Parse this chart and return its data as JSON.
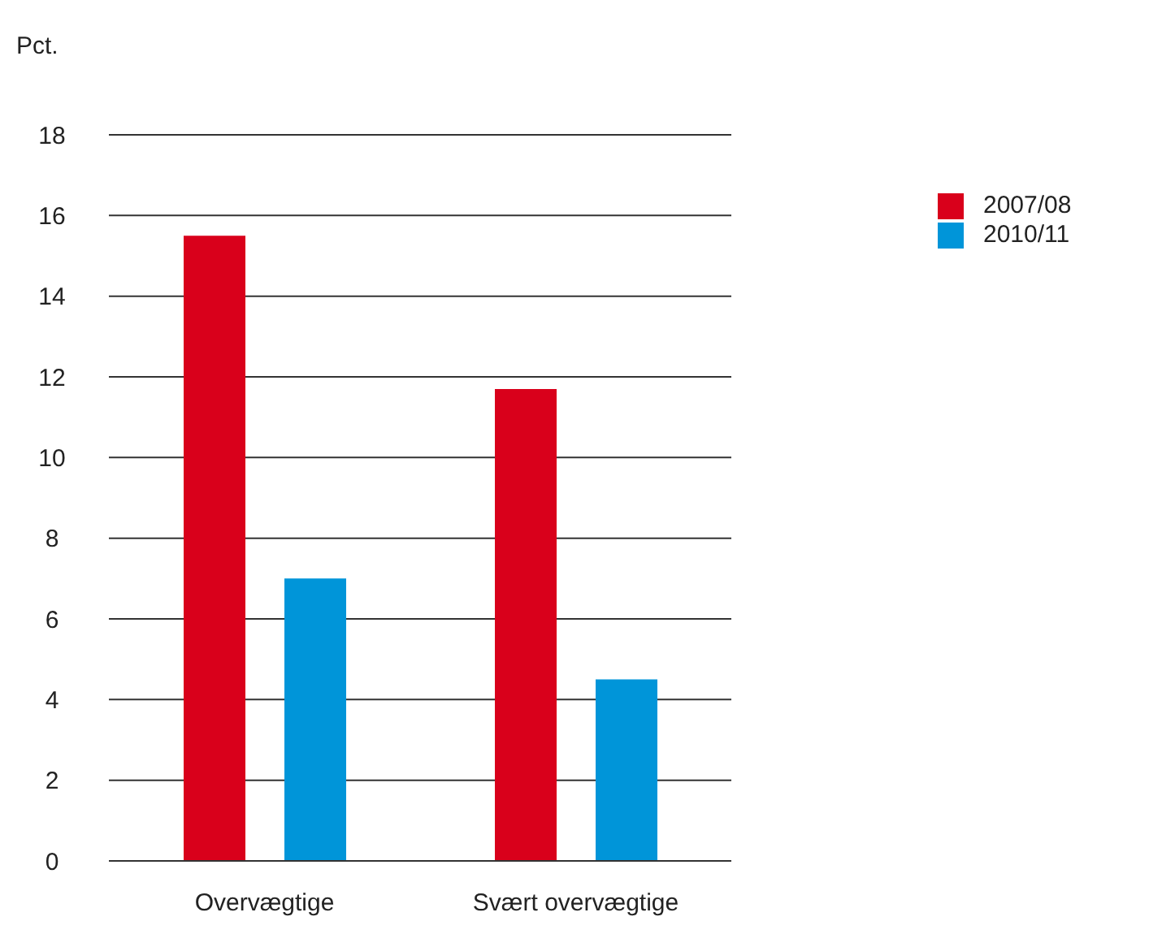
{
  "chart_data": {
    "type": "bar",
    "ylabel": "Pct.",
    "categories": [
      "Overvægtige",
      "Svært overvægtige"
    ],
    "series": [
      {
        "name": "2007/08",
        "color": "#d9001b",
        "values": [
          15.5,
          11.7
        ]
      },
      {
        "name": "2010/11",
        "color": "#0095d9",
        "values": [
          7.0,
          4.5
        ]
      }
    ],
    "ylim": [
      0,
      18
    ],
    "yticks": [
      0,
      2,
      4,
      6,
      8,
      10,
      12,
      14,
      16,
      18
    ],
    "grid": "y",
    "legend": "right"
  }
}
